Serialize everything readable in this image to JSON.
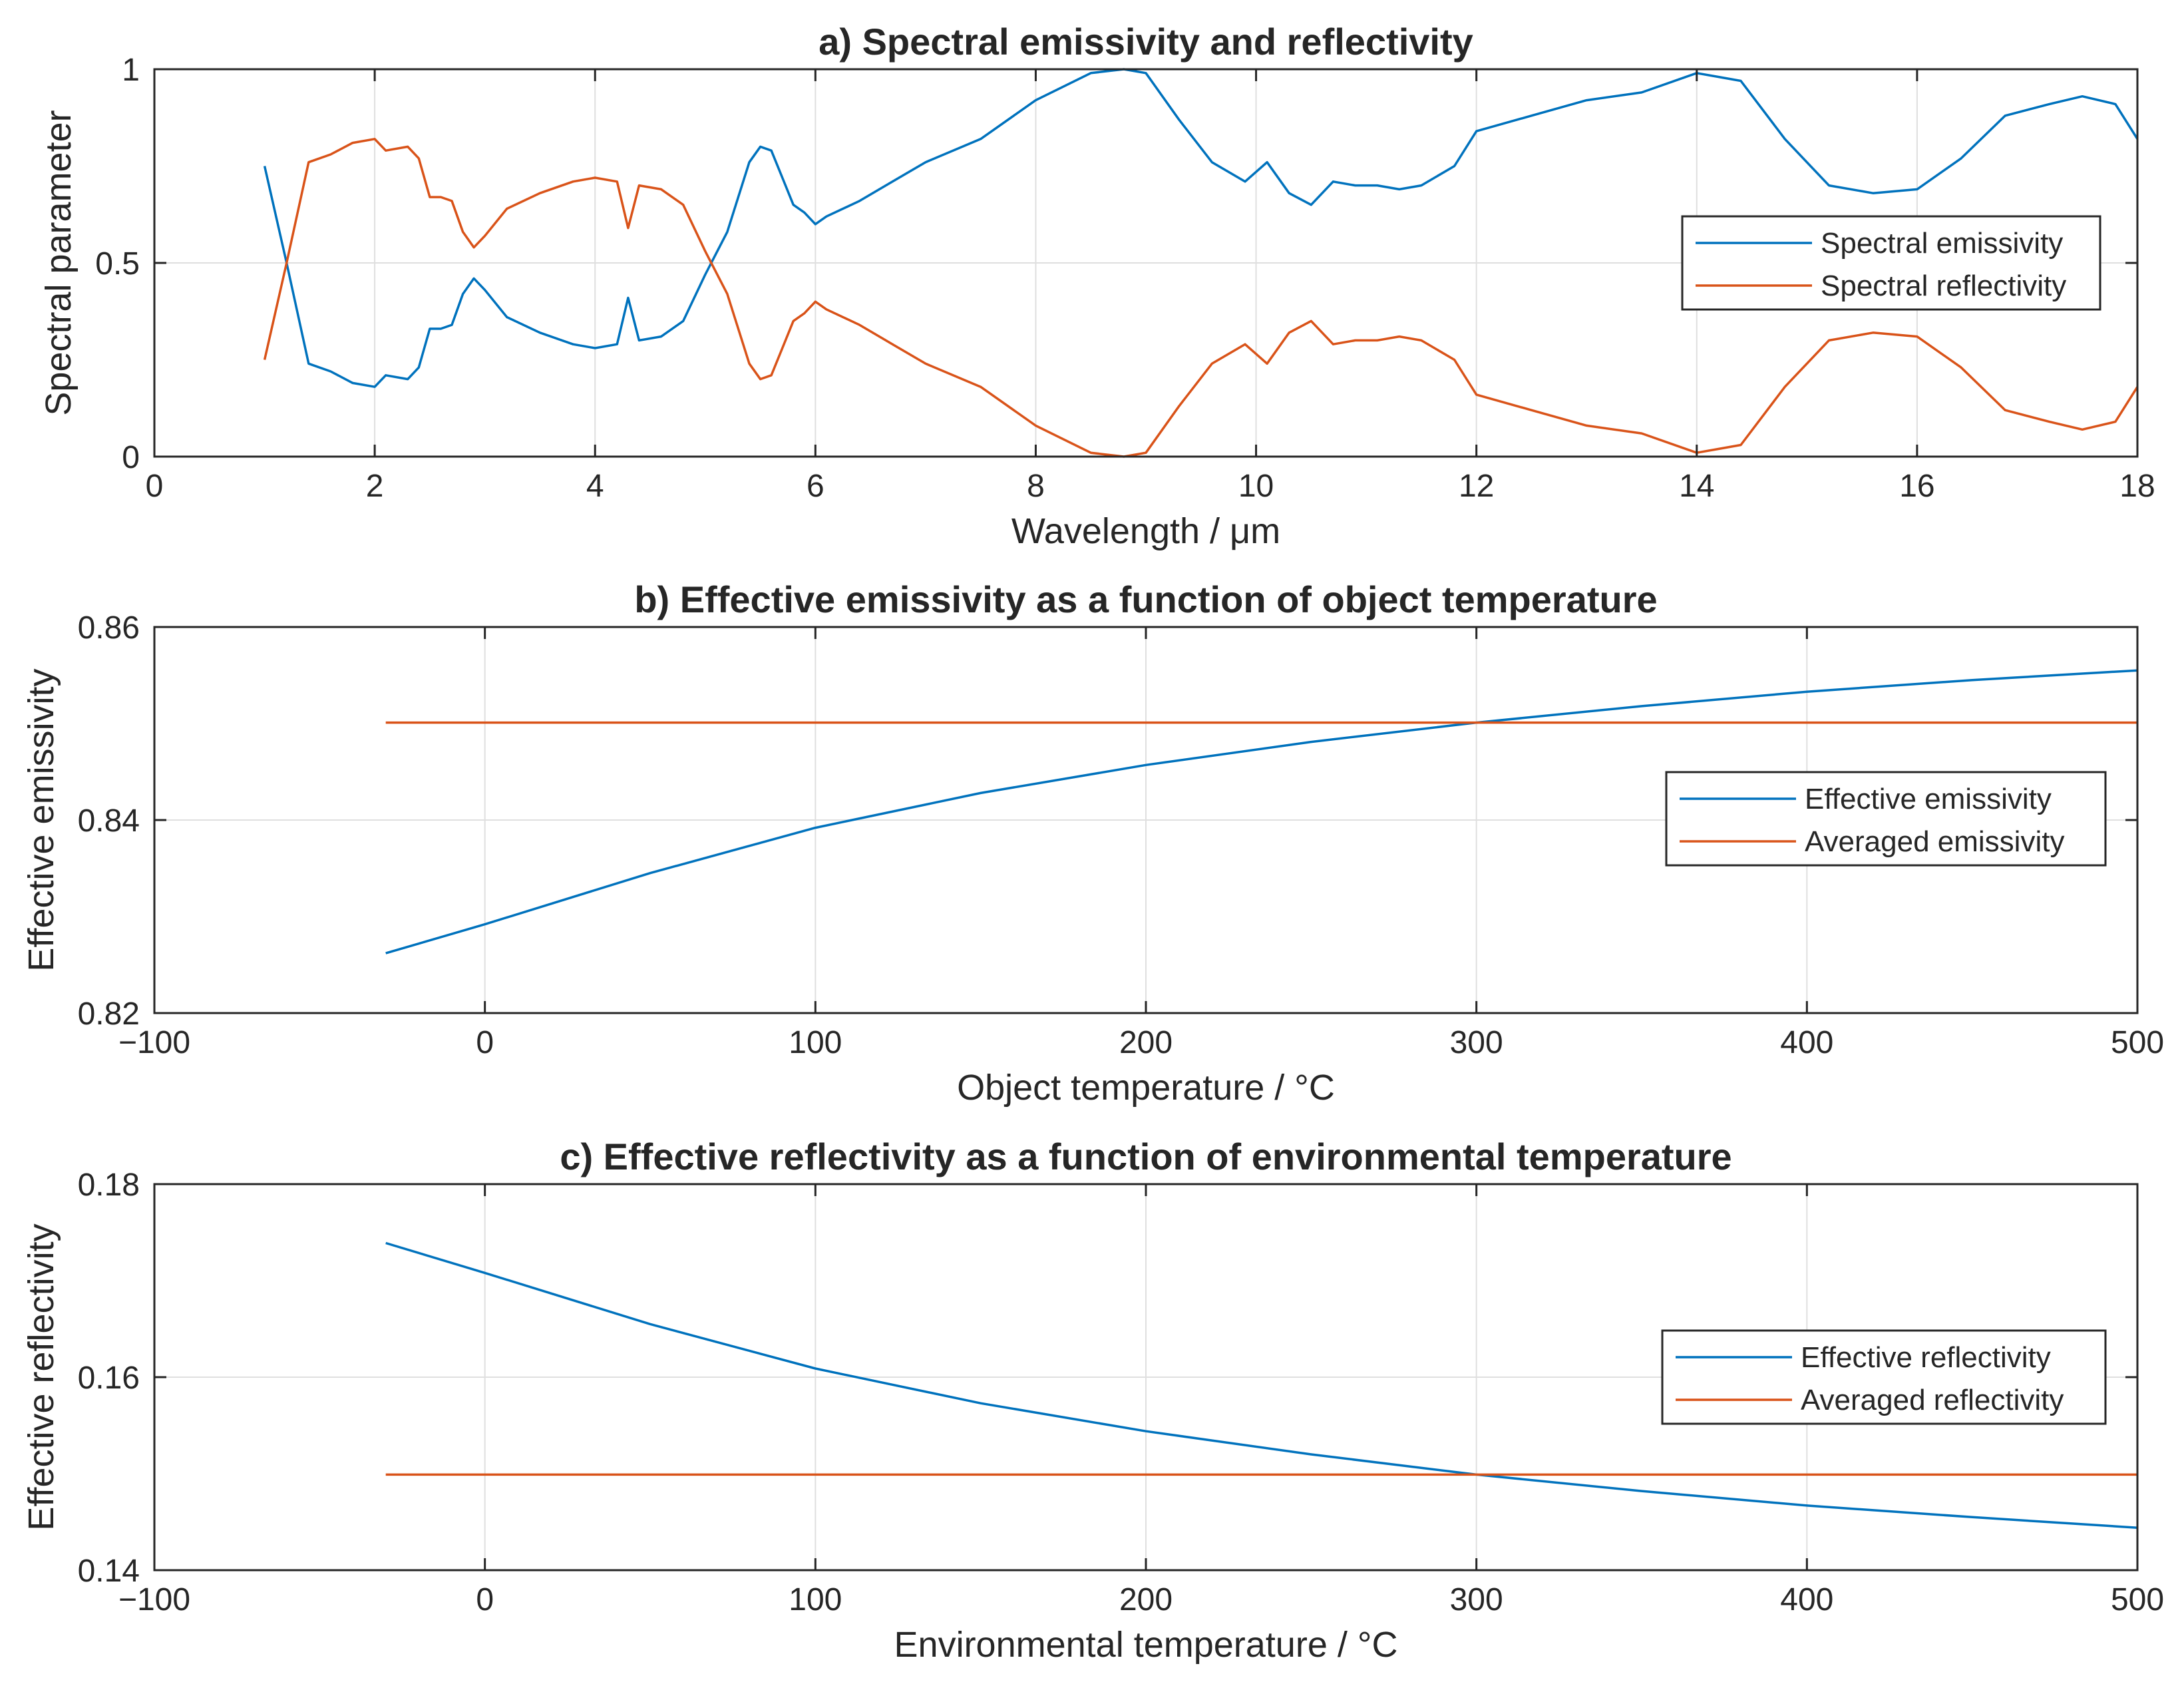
{
  "colors": {
    "series1": "#0072BD",
    "series2": "#D95319",
    "text": "#262626",
    "grid": "#dfdfdf"
  },
  "chart_data": [
    {
      "type": "line",
      "title": "a) Spectral emissivity and reflectivity",
      "xlabel": "Wavelength / μm",
      "ylabel": "Spectral parameter",
      "xlim": [
        0,
        18
      ],
      "ylim": [
        0,
        1
      ],
      "xticks": [
        0,
        2,
        4,
        6,
        8,
        10,
        12,
        14,
        16,
        18
      ],
      "xtick_labels": [
        "0",
        "2",
        "4",
        "6",
        "8",
        "10",
        "12",
        "14",
        "16",
        "18"
      ],
      "yticks": [
        0,
        0.5,
        1
      ],
      "ytick_labels": [
        "0",
        "0.5",
        "1"
      ],
      "grid": true,
      "legend_position": "middle-right",
      "series": [
        {
          "name": "Spectral emissivity",
          "x": [
            1.0,
            1.2,
            1.4,
            1.6,
            1.8,
            2.0,
            2.1,
            2.3,
            2.4,
            2.5,
            2.6,
            2.7,
            2.8,
            2.9,
            3.0,
            3.2,
            3.5,
            3.8,
            4.0,
            4.2,
            4.3,
            4.4,
            4.6,
            4.8,
            5.0,
            5.2,
            5.4,
            5.5,
            5.6,
            5.7,
            5.8,
            5.9,
            6.0,
            6.1,
            6.4,
            6.7,
            7.0,
            7.5,
            8.0,
            8.5,
            8.8,
            9.0,
            9.3,
            9.6,
            9.9,
            10.1,
            10.3,
            10.5,
            10.7,
            10.9,
            11.1,
            11.3,
            11.5,
            11.8,
            12.0,
            12.5,
            13.0,
            13.5,
            14.0,
            14.2,
            14.4,
            14.8,
            15.2,
            15.6,
            16.0,
            16.4,
            16.8,
            17.2,
            17.5,
            17.8,
            18.0
          ],
          "values": [
            0.75,
            0.5,
            0.24,
            0.22,
            0.19,
            0.18,
            0.21,
            0.2,
            0.23,
            0.33,
            0.33,
            0.34,
            0.42,
            0.46,
            0.43,
            0.36,
            0.32,
            0.29,
            0.28,
            0.29,
            0.41,
            0.3,
            0.31,
            0.35,
            0.47,
            0.58,
            0.76,
            0.8,
            0.79,
            0.72,
            0.65,
            0.63,
            0.6,
            0.62,
            0.66,
            0.71,
            0.76,
            0.82,
            0.92,
            0.99,
            1.0,
            0.99,
            0.87,
            0.76,
            0.71,
            0.76,
            0.68,
            0.65,
            0.71,
            0.7,
            0.7,
            0.69,
            0.7,
            0.75,
            0.84,
            0.88,
            0.92,
            0.94,
            0.99,
            0.98,
            0.97,
            0.82,
            0.7,
            0.68,
            0.69,
            0.77,
            0.88,
            0.91,
            0.93,
            0.91,
            0.82
          ]
        },
        {
          "name": "Spectral reflectivity",
          "x": [
            1.0,
            1.2,
            1.4,
            1.6,
            1.8,
            2.0,
            2.1,
            2.3,
            2.4,
            2.5,
            2.6,
            2.7,
            2.8,
            2.9,
            3.0,
            3.2,
            3.5,
            3.8,
            4.0,
            4.2,
            4.3,
            4.4,
            4.6,
            4.8,
            5.0,
            5.2,
            5.4,
            5.5,
            5.6,
            5.7,
            5.8,
            5.9,
            6.0,
            6.1,
            6.4,
            6.7,
            7.0,
            7.5,
            8.0,
            8.5,
            8.8,
            9.0,
            9.3,
            9.6,
            9.9,
            10.1,
            10.3,
            10.5,
            10.7,
            10.9,
            11.1,
            11.3,
            11.5,
            11.8,
            12.0,
            12.5,
            13.0,
            13.5,
            14.0,
            14.2,
            14.4,
            14.8,
            15.2,
            15.6,
            16.0,
            16.4,
            16.8,
            17.2,
            17.5,
            17.8,
            18.0
          ],
          "values": [
            0.25,
            0.5,
            0.76,
            0.78,
            0.81,
            0.82,
            0.79,
            0.8,
            0.77,
            0.67,
            0.67,
            0.66,
            0.58,
            0.54,
            0.57,
            0.64,
            0.68,
            0.71,
            0.72,
            0.71,
            0.59,
            0.7,
            0.69,
            0.65,
            0.53,
            0.42,
            0.24,
            0.2,
            0.21,
            0.28,
            0.35,
            0.37,
            0.4,
            0.38,
            0.34,
            0.29,
            0.24,
            0.18,
            0.08,
            0.01,
            0.0,
            0.01,
            0.13,
            0.24,
            0.29,
            0.24,
            0.32,
            0.35,
            0.29,
            0.3,
            0.3,
            0.31,
            0.3,
            0.25,
            0.16,
            0.12,
            0.08,
            0.06,
            0.01,
            0.02,
            0.03,
            0.18,
            0.3,
            0.32,
            0.31,
            0.23,
            0.12,
            0.09,
            0.07,
            0.09,
            0.18
          ]
        }
      ]
    },
    {
      "type": "line",
      "title": "b) Effective emissivity as a function of object temperature",
      "xlabel": "Object temperature / °C",
      "ylabel": "Effective emissivity",
      "xlim": [
        -100,
        500
      ],
      "ylim": [
        0.82,
        0.86
      ],
      "xticks": [
        -100,
        0,
        100,
        200,
        300,
        400,
        500
      ],
      "xtick_labels": [
        "−100",
        "0",
        "100",
        "200",
        "300",
        "400",
        "500"
      ],
      "yticks": [
        0.82,
        0.84,
        0.86
      ],
      "ytick_labels": [
        "0.82",
        "0.84",
        "0.86"
      ],
      "grid": true,
      "legend_position": "middle-right",
      "series": [
        {
          "name": "Effective emissivity",
          "x": [
            -30,
            0,
            50,
            100,
            150,
            200,
            250,
            300,
            350,
            400,
            450,
            500
          ],
          "values": [
            0.8262,
            0.8292,
            0.8345,
            0.8392,
            0.8428,
            0.8457,
            0.8481,
            0.8501,
            0.8518,
            0.8533,
            0.8545,
            0.8555
          ]
        },
        {
          "name": "Averaged emissivity",
          "x": [
            -30,
            500
          ],
          "values": [
            0.8501,
            0.8501
          ]
        }
      ]
    },
    {
      "type": "line",
      "title": "c) Effective reflectivity as a function of environmental temperature",
      "xlabel": "Environmental temperature / °C",
      "ylabel": "Effective reflectivity",
      "xlim": [
        -100,
        500
      ],
      "ylim": [
        0.14,
        0.18
      ],
      "xticks": [
        -100,
        0,
        100,
        200,
        300,
        400,
        500
      ],
      "xtick_labels": [
        "−100",
        "0",
        "100",
        "200",
        "300",
        "400",
        "500"
      ],
      "yticks": [
        0.14,
        0.16,
        0.18
      ],
      "ytick_labels": [
        "0.14",
        "0.16",
        "0.18"
      ],
      "grid": true,
      "legend_position": "middle-right",
      "series": [
        {
          "name": "Effective reflectivity",
          "x": [
            -30,
            0,
            50,
            100,
            150,
            200,
            250,
            300,
            350,
            400,
            450,
            500
          ],
          "values": [
            0.1739,
            0.1708,
            0.1655,
            0.1609,
            0.1573,
            0.1544,
            0.152,
            0.1499,
            0.1482,
            0.1467,
            0.1455,
            0.1444
          ]
        },
        {
          "name": "Averaged reflectivity",
          "x": [
            -30,
            500
          ],
          "values": [
            0.1499,
            0.1499
          ]
        }
      ]
    }
  ]
}
